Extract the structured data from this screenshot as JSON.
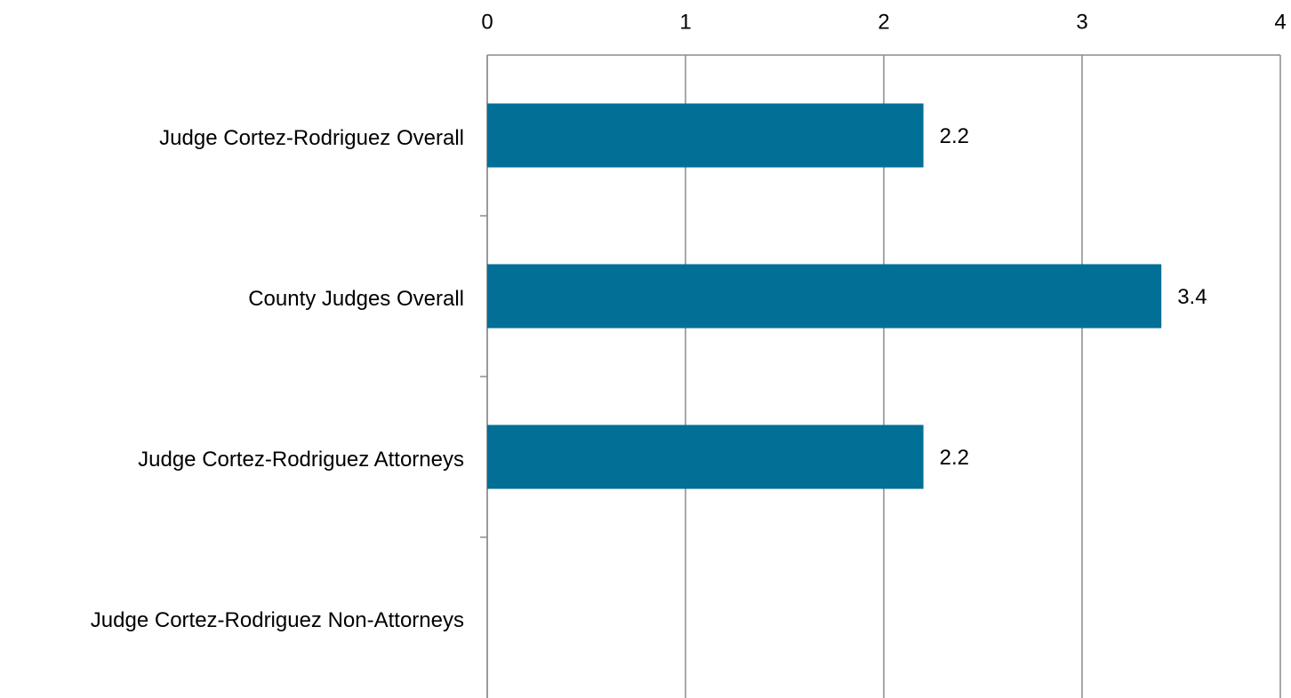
{
  "chart_data": {
    "type": "barh",
    "categories": [
      "Judge Cortez-Rodriguez Overall",
      "County Judges Overall",
      "Judge Cortez-Rodriguez Attorneys",
      "Judge Cortez-Rodriguez Non-Attorneys"
    ],
    "values": [
      2.2,
      3.4,
      2.2,
      null
    ],
    "color": "#026f96",
    "xlim": [
      0,
      4
    ],
    "xticks": [
      0,
      1,
      2,
      3,
      4
    ],
    "grid": true
  }
}
